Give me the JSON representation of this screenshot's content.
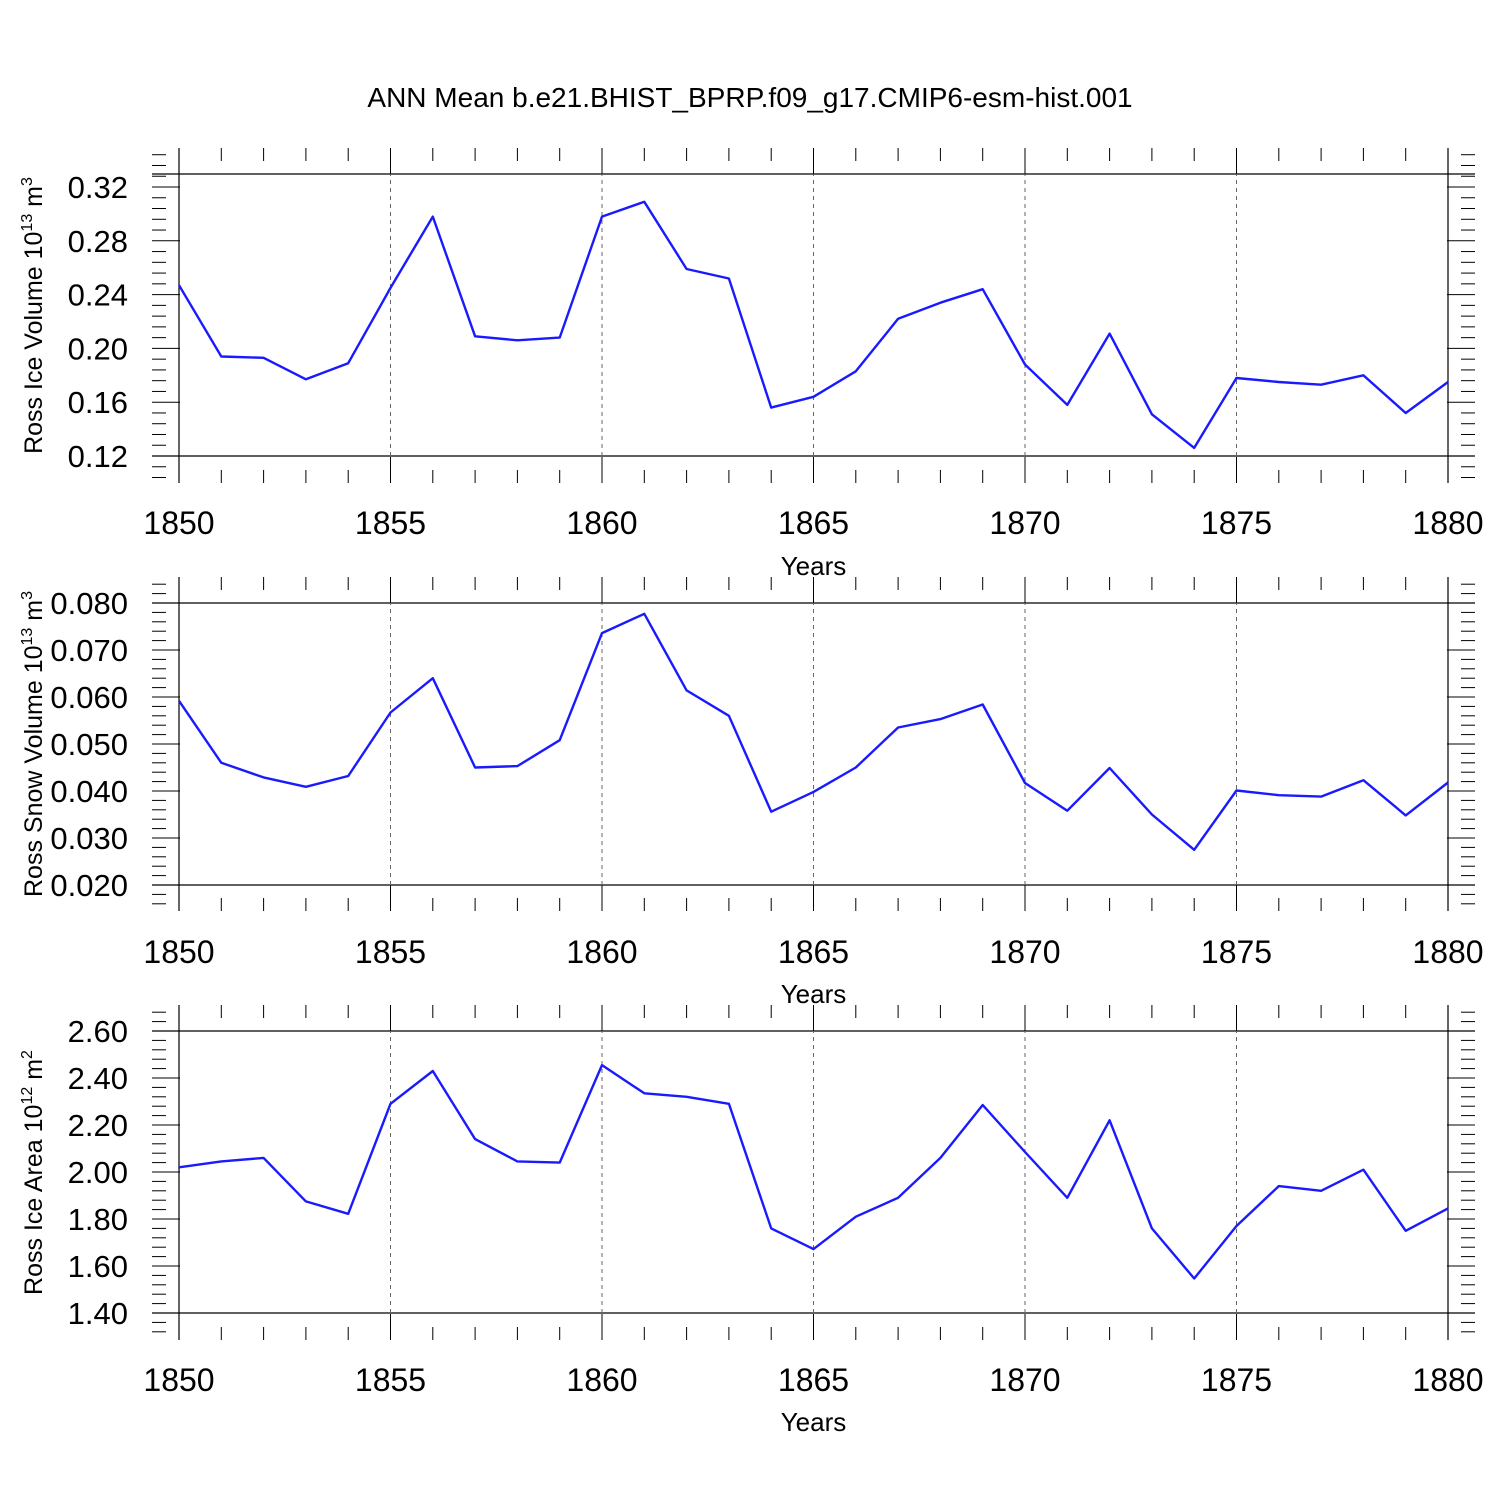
{
  "title": "ANN Mean b.e21.BHIST_BPRP.f09_g17.CMIP6-esm-hist.001",
  "line_color": "#1a1aff",
  "chart_data": [
    {
      "type": "line",
      "title": "",
      "ylabel": "Ross Ice Volume 10",
      "ylabel_exp": "13",
      "ylabel_unit": " m",
      "ylabel_unit_exp": "3",
      "xlabel": "Years",
      "xlim": [
        1850,
        1880
      ],
      "ylim": [
        0.12,
        0.33
      ],
      "yticks": [
        "0.12",
        "0.16",
        "0.20",
        "0.24",
        "0.28",
        "0.32"
      ],
      "xticks": [
        "1850",
        "1855",
        "1860",
        "1865",
        "1870",
        "1875",
        "1880"
      ],
      "grid": "vertical dashed at major x ticks",
      "x": [
        1850,
        1851,
        1852,
        1853,
        1854,
        1855,
        1856,
        1857,
        1858,
        1859,
        1860,
        1861,
        1862,
        1863,
        1864,
        1865,
        1866,
        1867,
        1868,
        1869,
        1870,
        1871,
        1872,
        1873,
        1874,
        1875,
        1876,
        1877,
        1878,
        1879,
        1880
      ],
      "values": [
        0.247,
        0.194,
        0.193,
        0.177,
        0.189,
        0.245,
        0.298,
        0.209,
        0.206,
        0.208,
        0.298,
        0.309,
        0.259,
        0.252,
        0.156,
        0.164,
        0.183,
        0.222,
        0.234,
        0.244,
        0.188,
        0.158,
        0.211,
        0.151,
        0.126,
        0.178,
        0.175,
        0.173,
        0.18,
        0.152,
        0.175
      ]
    },
    {
      "type": "line",
      "title": "",
      "ylabel": "Ross Snow Volume 10",
      "ylabel_exp": "13",
      "ylabel_unit": " m",
      "ylabel_unit_exp": "3",
      "xlabel": "Years",
      "xlim": [
        1850,
        1880
      ],
      "ylim": [
        0.02,
        0.08
      ],
      "yticks": [
        "0.020",
        "0.030",
        "0.040",
        "0.050",
        "0.060",
        "0.070",
        "0.080"
      ],
      "xticks": [
        "1850",
        "1855",
        "1860",
        "1865",
        "1870",
        "1875",
        "1880"
      ],
      "grid": "vertical dashed at major x ticks",
      "x": [
        1850,
        1851,
        1852,
        1853,
        1854,
        1855,
        1856,
        1857,
        1858,
        1859,
        1860,
        1861,
        1862,
        1863,
        1864,
        1865,
        1866,
        1867,
        1868,
        1869,
        1870,
        1871,
        1872,
        1873,
        1874,
        1875,
        1876,
        1877,
        1878,
        1879,
        1880
      ],
      "values": [
        0.0592,
        0.046,
        0.0429,
        0.0409,
        0.0432,
        0.0567,
        0.064,
        0.045,
        0.0453,
        0.0508,
        0.0736,
        0.0777,
        0.0614,
        0.056,
        0.0356,
        0.0398,
        0.045,
        0.0535,
        0.0553,
        0.0584,
        0.0417,
        0.0358,
        0.0449,
        0.035,
        0.0275,
        0.0401,
        0.0391,
        0.0388,
        0.0423,
        0.0348,
        0.0418
      ]
    },
    {
      "type": "line",
      "title": "",
      "ylabel": "Ross Ice Area 10",
      "ylabel_exp": "12",
      "ylabel_unit": " m",
      "ylabel_unit_exp": "2",
      "xlabel": "Years",
      "xlim": [
        1850,
        1880
      ],
      "ylim": [
        1.4,
        2.6
      ],
      "yticks": [
        "1.40",
        "1.60",
        "1.80",
        "2.00",
        "2.20",
        "2.40",
        "2.60"
      ],
      "xticks": [
        "1850",
        "1855",
        "1860",
        "1865",
        "1870",
        "1875",
        "1880"
      ],
      "grid": "vertical dashed at major x ticks",
      "x": [
        1850,
        1851,
        1852,
        1853,
        1854,
        1855,
        1856,
        1857,
        1858,
        1859,
        1860,
        1861,
        1862,
        1863,
        1864,
        1865,
        1866,
        1867,
        1868,
        1869,
        1870,
        1871,
        1872,
        1873,
        1874,
        1875,
        1876,
        1877,
        1878,
        1879,
        1880
      ],
      "values": [
        2.02,
        2.045,
        2.06,
        1.875,
        1.822,
        2.29,
        2.43,
        2.14,
        2.045,
        2.04,
        2.455,
        2.335,
        2.32,
        2.29,
        1.76,
        1.672,
        1.81,
        1.89,
        2.06,
        2.285,
        2.085,
        1.89,
        2.22,
        1.76,
        1.547,
        1.77,
        1.94,
        1.92,
        2.01,
        1.75,
        1.845
      ]
    }
  ]
}
